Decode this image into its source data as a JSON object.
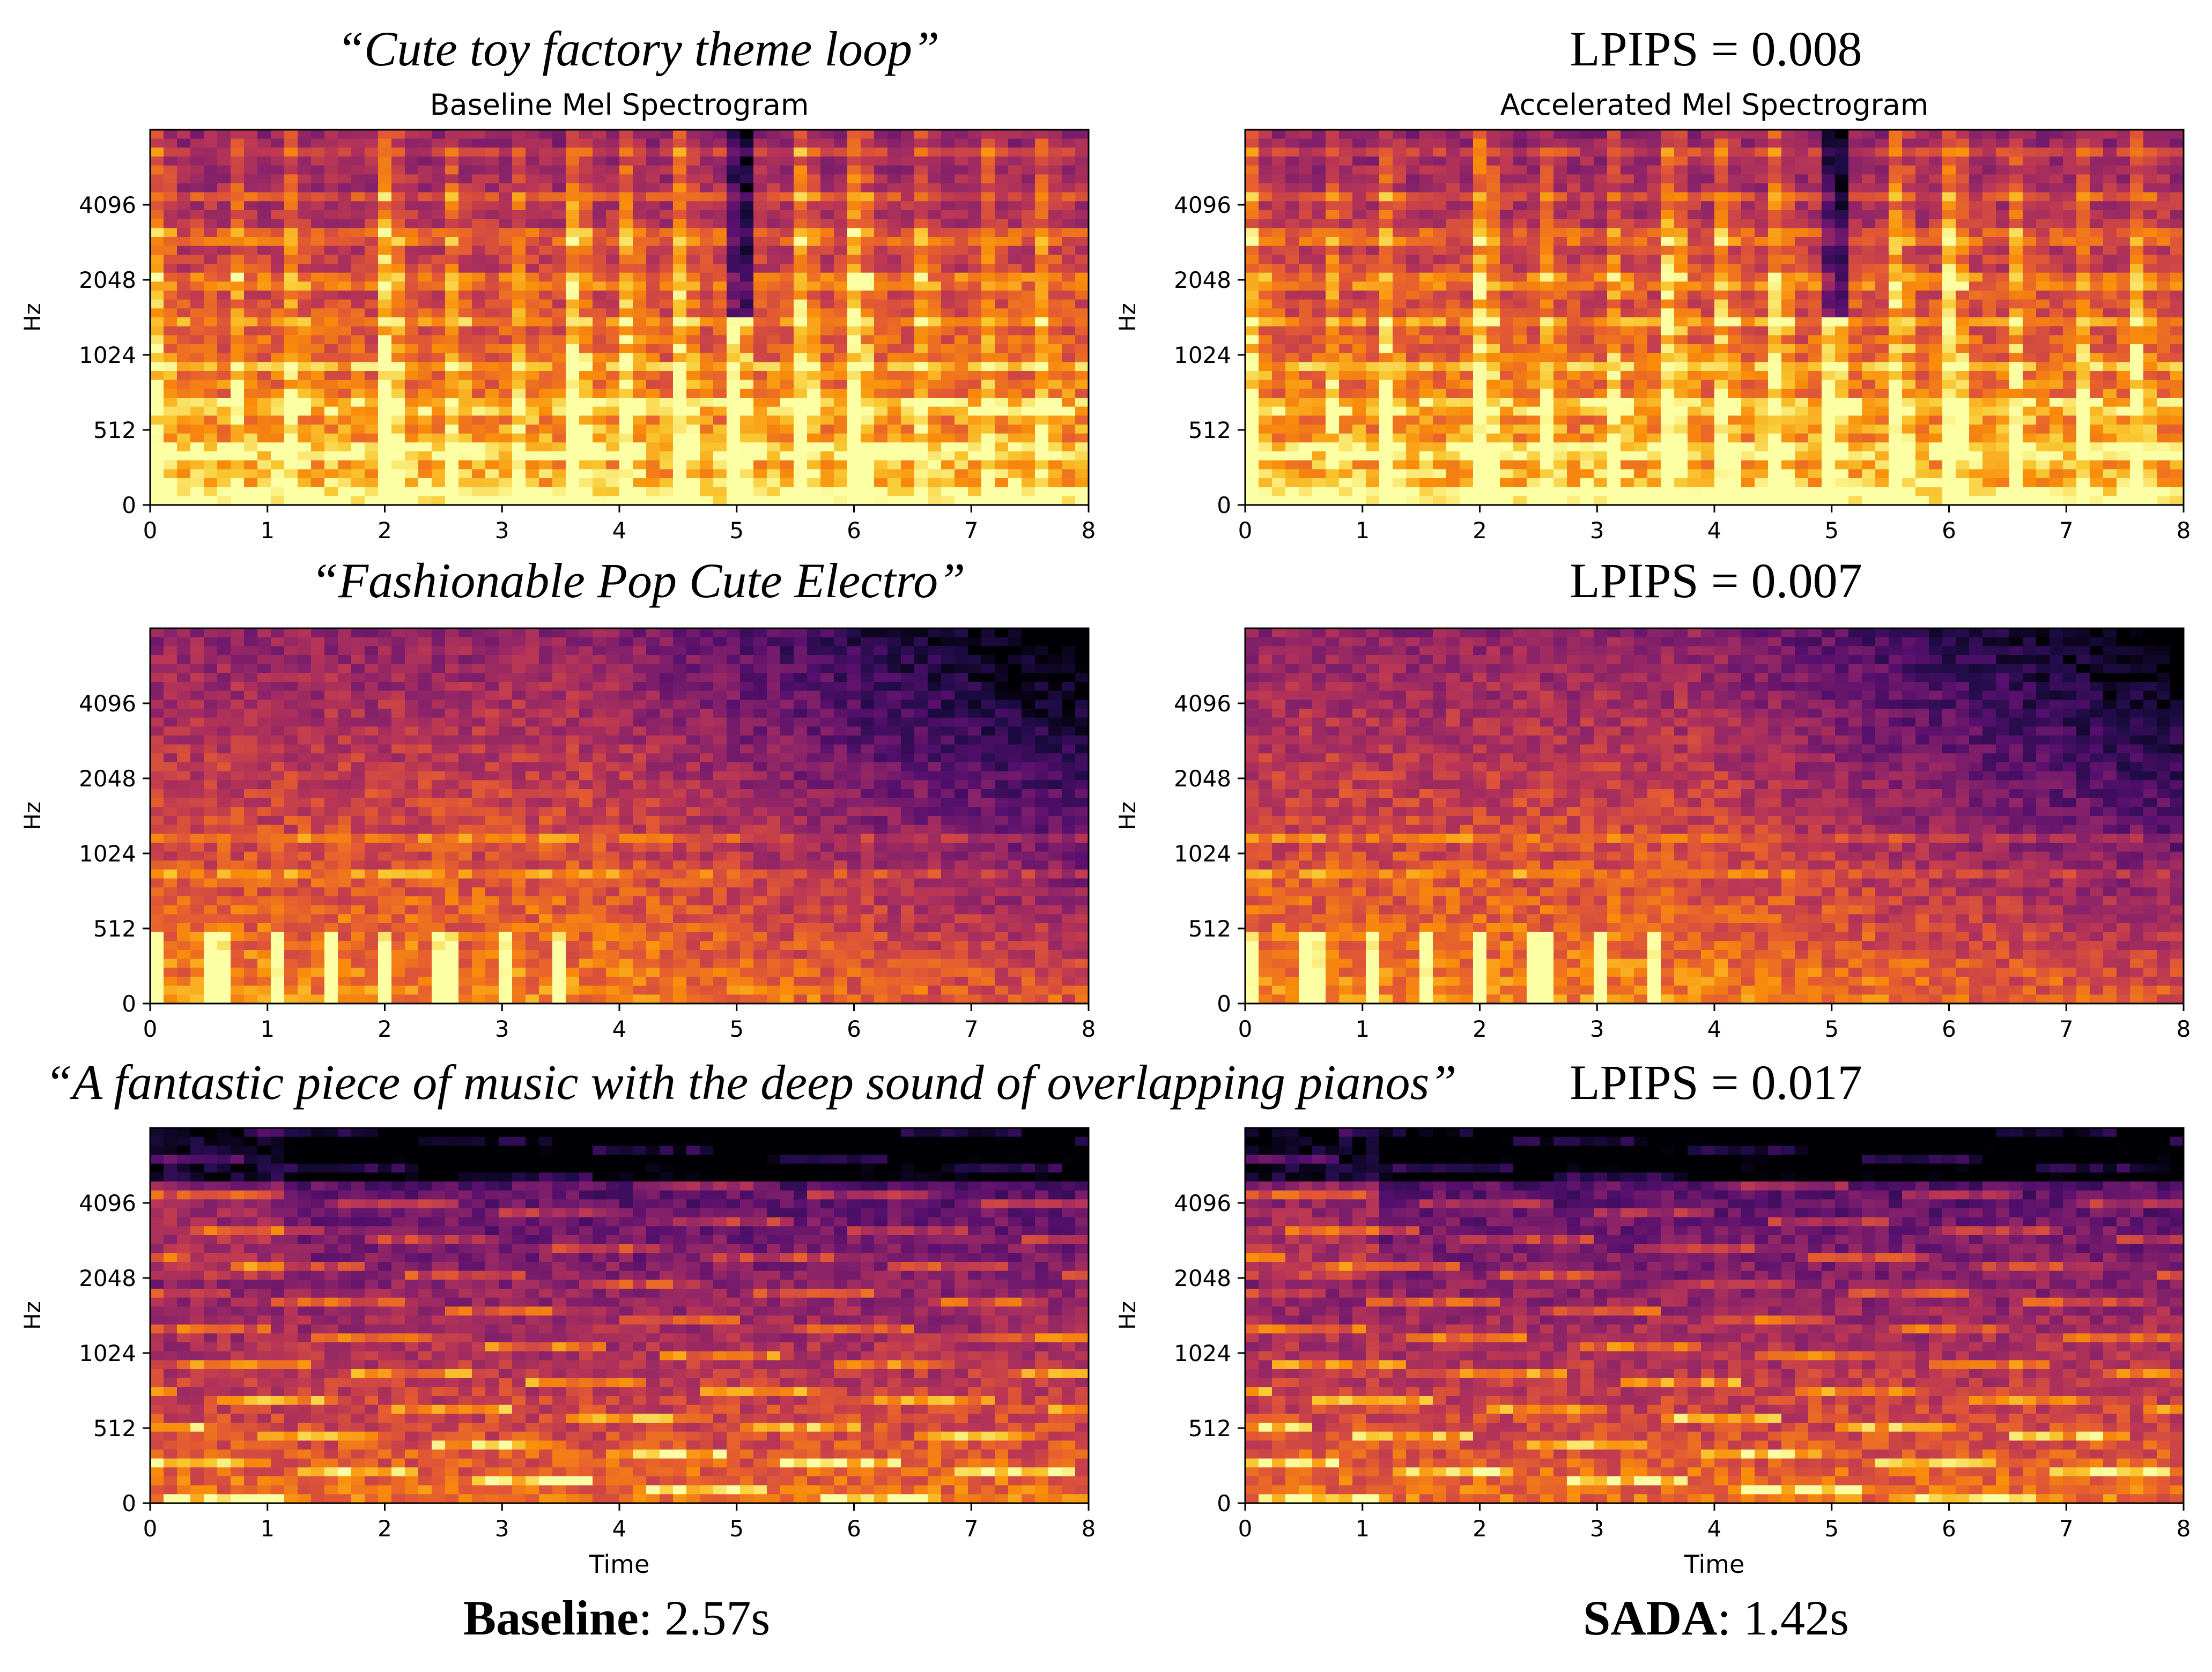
{
  "column_titles": [
    "Baseline Mel Spectrogram",
    "Accelerated Mel Spectrogram"
  ],
  "rows": [
    {
      "prompt": "“Cute toy factory theme loop”",
      "lpips": "LPIPS = 0.008"
    },
    {
      "prompt": "“Fashionable Pop Cute Electro”",
      "lpips": "LPIPS = 0.007"
    },
    {
      "prompt": "“A fantastic piece of music with the deep sound of overlapping pianos”",
      "lpips": "LPIPS = 0.017"
    }
  ],
  "footer": {
    "baseline_name": "Baseline",
    "baseline_time": ": 2.57s",
    "sada_name": "SADA",
    "sada_time": ": 1.42s"
  },
  "chart_data": [
    {
      "type": "heatmap",
      "title": "Baseline Mel Spectrogram",
      "xlabel": "",
      "ylabel": "Hz",
      "x_ticks": [
        0,
        1,
        2,
        3,
        4,
        5,
        6,
        7,
        8
      ],
      "y_ticks": [
        "0",
        "512",
        "1024",
        "2048",
        "4096"
      ],
      "xlim": [
        0,
        8
      ],
      "colormap": "inferno",
      "description_pattern": "onsets"
    },
    {
      "type": "heatmap",
      "title": "Accelerated Mel Spectrogram",
      "xlabel": "",
      "ylabel": "Hz",
      "x_ticks": [
        0,
        1,
        2,
        3,
        4,
        5,
        6,
        7,
        8
      ],
      "y_ticks": [
        "0",
        "512",
        "1024",
        "2048",
        "4096"
      ],
      "xlim": [
        0,
        8
      ],
      "colormap": "inferno",
      "description_pattern": "onsets"
    },
    {
      "type": "heatmap",
      "title": "",
      "xlabel": "",
      "ylabel": "Hz",
      "x_ticks": [
        0,
        1,
        2,
        3,
        4,
        5,
        6,
        7,
        8
      ],
      "y_ticks": [
        "0",
        "512",
        "1024",
        "2048",
        "4096"
      ],
      "xlim": [
        0,
        8
      ],
      "colormap": "inferno",
      "description_pattern": "decay"
    },
    {
      "type": "heatmap",
      "title": "",
      "xlabel": "",
      "ylabel": "Hz",
      "x_ticks": [
        0,
        1,
        2,
        3,
        4,
        5,
        6,
        7,
        8
      ],
      "y_ticks": [
        "0",
        "512",
        "1024",
        "2048",
        "4096"
      ],
      "xlim": [
        0,
        8
      ],
      "colormap": "inferno",
      "description_pattern": "decay"
    },
    {
      "type": "heatmap",
      "title": "",
      "xlabel": "Time",
      "ylabel": "Hz",
      "x_ticks": [
        0,
        1,
        2,
        3,
        4,
        5,
        6,
        7,
        8
      ],
      "y_ticks": [
        "0",
        "512",
        "1024",
        "2048",
        "4096"
      ],
      "xlim": [
        0,
        8
      ],
      "colormap": "inferno",
      "description_pattern": "piano"
    },
    {
      "type": "heatmap",
      "title": "",
      "xlabel": "Time",
      "ylabel": "Hz",
      "x_ticks": [
        0,
        1,
        2,
        3,
        4,
        5,
        6,
        7,
        8
      ],
      "y_ticks": [
        "0",
        "512",
        "1024",
        "2048",
        "4096"
      ],
      "xlim": [
        0,
        8
      ],
      "colormap": "inferno",
      "description_pattern": "piano"
    }
  ]
}
